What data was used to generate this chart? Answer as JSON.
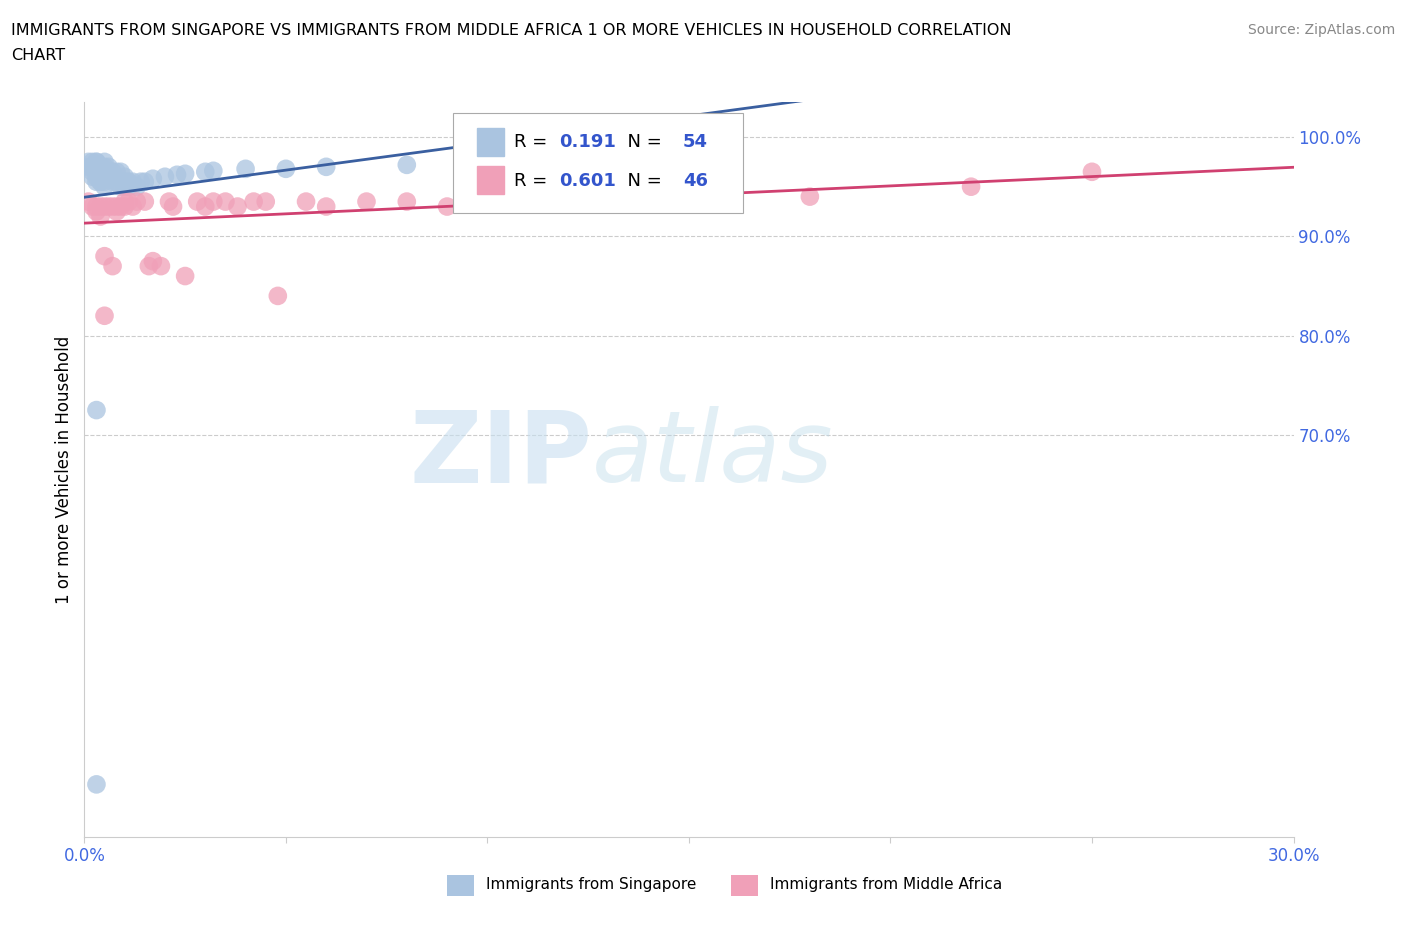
{
  "title_line1": "IMMIGRANTS FROM SINGAPORE VS IMMIGRANTS FROM MIDDLE AFRICA 1 OR MORE VEHICLES IN HOUSEHOLD CORRELATION",
  "title_line2": "CHART",
  "source": "Source: ZipAtlas.com",
  "ylabel": "1 or more Vehicles in Household",
  "xlim": [
    0.0,
    0.3
  ],
  "ylim": [
    0.295,
    1.035
  ],
  "xticks": [
    0.0,
    0.05,
    0.1,
    0.15,
    0.2,
    0.25,
    0.3
  ],
  "xticklabels": [
    "0.0%",
    "",
    "",
    "",
    "",
    "",
    "30.0%"
  ],
  "ytick_positions": [
    0.7,
    0.8,
    0.9,
    1.0
  ],
  "ytick_labels": [
    "70.0%",
    "80.0%",
    "90.0%",
    "100.0%"
  ],
  "singapore_color": "#aac4e0",
  "middle_africa_color": "#f0a0b8",
  "singapore_line_color": "#3a5fa0",
  "middle_africa_line_color": "#d04070",
  "R_singapore": 0.191,
  "N_singapore": 54,
  "R_middle_africa": 0.601,
  "N_middle_africa": 46,
  "legend_label_1": "Immigrants from Singapore",
  "legend_label_2": "Immigrants from Middle Africa",
  "watermark_zip": "ZIP",
  "watermark_atlas": "atlas",
  "background_color": "#ffffff",
  "grid_color": "#cccccc",
  "axis_color": "#cccccc",
  "tick_color": "#4169e1",
  "singapore_x": [
    0.001,
    0.001,
    0.002,
    0.002,
    0.002,
    0.002,
    0.003,
    0.003,
    0.003,
    0.003,
    0.003,
    0.003,
    0.004,
    0.004,
    0.004,
    0.004,
    0.004,
    0.005,
    0.005,
    0.005,
    0.005,
    0.005,
    0.005,
    0.006,
    0.006,
    0.007,
    0.007,
    0.007,
    0.008,
    0.008,
    0.009,
    0.009,
    0.01,
    0.01,
    0.01,
    0.011,
    0.011,
    0.012,
    0.013,
    0.014,
    0.015,
    0.017,
    0.02,
    0.023,
    0.025,
    0.03,
    0.032,
    0.04,
    0.05,
    0.06,
    0.08,
    0.095,
    0.003,
    0.003
  ],
  "singapore_y": [
    0.975,
    0.97,
    0.97,
    0.965,
    0.96,
    0.975,
    0.975,
    0.97,
    0.965,
    0.96,
    0.955,
    0.975,
    0.96,
    0.955,
    0.955,
    0.97,
    0.97,
    0.96,
    0.955,
    0.95,
    0.97,
    0.965,
    0.975,
    0.96,
    0.97,
    0.96,
    0.965,
    0.955,
    0.955,
    0.965,
    0.965,
    0.95,
    0.95,
    0.955,
    0.96,
    0.955,
    0.95,
    0.955,
    0.95,
    0.955,
    0.955,
    0.958,
    0.96,
    0.962,
    0.963,
    0.965,
    0.966,
    0.968,
    0.968,
    0.97,
    0.972,
    0.97,
    0.725,
    0.348
  ],
  "middle_africa_x": [
    0.001,
    0.002,
    0.003,
    0.003,
    0.004,
    0.004,
    0.005,
    0.005,
    0.006,
    0.007,
    0.008,
    0.008,
    0.009,
    0.01,
    0.01,
    0.011,
    0.012,
    0.013,
    0.015,
    0.016,
    0.017,
    0.019,
    0.021,
    0.022,
    0.025,
    0.028,
    0.03,
    0.032,
    0.035,
    0.038,
    0.042,
    0.045,
    0.048,
    0.055,
    0.06,
    0.07,
    0.08,
    0.09,
    0.1,
    0.12,
    0.15,
    0.18,
    0.22,
    0.25,
    0.005,
    0.007
  ],
  "middle_africa_y": [
    0.935,
    0.93,
    0.925,
    0.93,
    0.93,
    0.92,
    0.93,
    0.88,
    0.93,
    0.93,
    0.925,
    0.93,
    0.93,
    0.93,
    0.935,
    0.935,
    0.93,
    0.935,
    0.935,
    0.87,
    0.875,
    0.87,
    0.935,
    0.93,
    0.86,
    0.935,
    0.93,
    0.935,
    0.935,
    0.93,
    0.935,
    0.935,
    0.84,
    0.935,
    0.93,
    0.935,
    0.935,
    0.93,
    0.94,
    0.95,
    0.935,
    0.94,
    0.95,
    0.965,
    0.82,
    0.87
  ],
  "sg_trend": [
    0.935,
    0.973
  ],
  "ma_trend": [
    0.895,
    0.975
  ]
}
